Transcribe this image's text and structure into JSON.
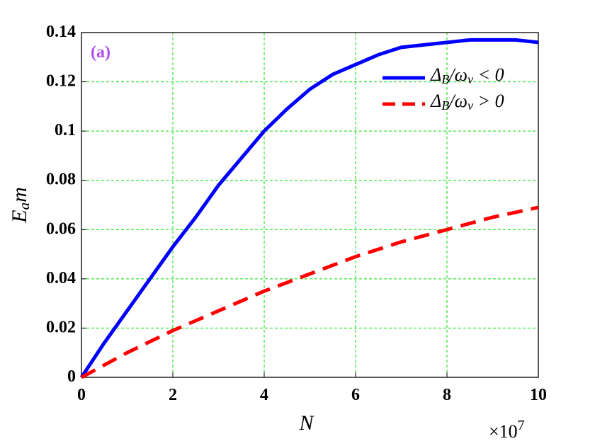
{
  "chart_data": {
    "type": "line",
    "annotation": "(a)",
    "annotation_color": "#b04cf0",
    "x_label": "N",
    "y_label": "E_am",
    "x_multiplier": {
      "base": "×10",
      "exponent": "7"
    },
    "xlim": [
      0,
      10
    ],
    "xticks": [
      0,
      2,
      4,
      6,
      8,
      10
    ],
    "ylim": [
      0,
      0.14
    ],
    "yticks": [
      0,
      0.02,
      0.04,
      0.06,
      0.08,
      0.1,
      0.12,
      0.14
    ],
    "grid": true,
    "grid_color": "#00e000",
    "legend": "upper right",
    "series": [
      {
        "name": "Δ_B/ω_ν < 0",
        "color": "#0000ff",
        "dash": "solid",
        "x": [
          0,
          0.5,
          1,
          1.5,
          2,
          2.5,
          3,
          3.5,
          4,
          4.5,
          5,
          5.5,
          6,
          6.5,
          7,
          7.5,
          8,
          8.5,
          9,
          9.5,
          10
        ],
        "values": [
          0,
          0.014,
          0.027,
          0.04,
          0.053,
          0.065,
          0.078,
          0.089,
          0.1,
          0.109,
          0.117,
          0.123,
          0.127,
          0.131,
          0.134,
          0.135,
          0.136,
          0.137,
          0.137,
          0.137,
          0.136
        ]
      },
      {
        "name": "Δ_B/ω_ν > 0",
        "color": "#ff0000",
        "dash": "dashed",
        "x": [
          0,
          1,
          2,
          3,
          4,
          5,
          6,
          7,
          8,
          9,
          10
        ],
        "values": [
          0,
          0.01,
          0.019,
          0.027,
          0.035,
          0.042,
          0.049,
          0.055,
          0.06,
          0.065,
          0.069
        ]
      }
    ]
  }
}
